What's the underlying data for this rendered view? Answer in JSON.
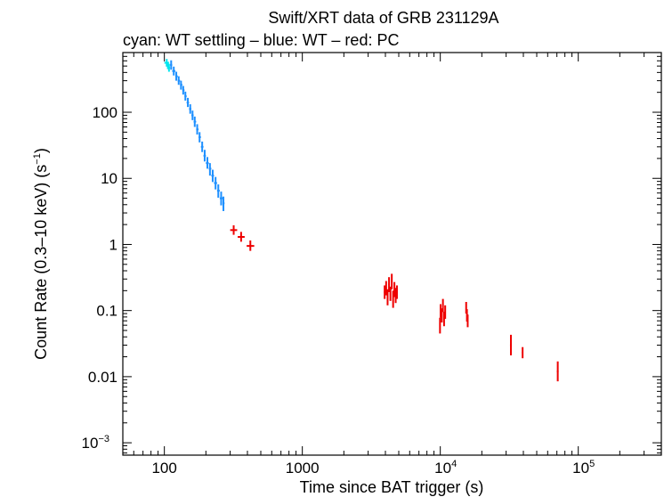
{
  "chart_data": {
    "type": "scatter",
    "title": "Swift/XRT data of GRB 231129A",
    "subtitle": "cyan: WT settling – blue: WT – red: PC",
    "xlabel": "Time since BAT trigger (s)",
    "ylabel_main": "Count Rate (0.3–10 keV) (s",
    "ylabel_sup": "−1",
    "ylabel_close": ")",
    "x_scale": "log",
    "y_scale": "log",
    "xlim": [
      50,
      400000
    ],
    "ylim": [
      0.00065,
      800
    ],
    "x_ticks": [
      {
        "value": 100,
        "label": "100"
      },
      {
        "value": 1000,
        "label": "1000"
      },
      {
        "value": 10000,
        "base": "10",
        "exp": "4"
      },
      {
        "value": 100000,
        "base": "10",
        "exp": "5"
      }
    ],
    "y_ticks": [
      {
        "value": 100,
        "label": "100"
      },
      {
        "value": 10,
        "label": "10"
      },
      {
        "value": 1,
        "label": "1"
      },
      {
        "value": 0.1,
        "label": "0.1"
      },
      {
        "value": 0.01,
        "label": "0.01"
      },
      {
        "value": 0.001,
        "base": "10",
        "exp": "−3"
      }
    ],
    "grid": false,
    "legend": "none",
    "series": [
      {
        "name": "WT settling",
        "color": "#00e5ee",
        "points": [
          [
            104,
            560,
            100,
            108,
            490,
            640
          ],
          [
            106,
            510,
            104,
            108,
            450,
            580
          ],
          [
            108,
            470,
            106,
            110,
            410,
            540
          ]
        ]
      },
      {
        "name": "WT",
        "color": "#1e90ff",
        "points": [
          [
            112,
            520,
            110,
            114,
            440,
            610
          ],
          [
            117,
            420,
            114,
            120,
            360,
            490
          ],
          [
            122,
            350,
            120,
            125,
            300,
            410
          ],
          [
            127,
            300,
            125,
            130,
            260,
            350
          ],
          [
            132,
            260,
            130,
            135,
            220,
            300
          ],
          [
            137,
            215,
            135,
            140,
            185,
            250
          ],
          [
            142,
            175,
            140,
            145,
            150,
            205
          ],
          [
            148,
            140,
            145,
            151,
            120,
            165
          ],
          [
            154,
            112,
            151,
            157,
            95,
            132
          ],
          [
            160,
            90,
            157,
            163,
            76,
            106
          ],
          [
            166,
            72,
            163,
            170,
            60,
            86
          ],
          [
            173,
            55,
            170,
            177,
            46,
            66
          ],
          [
            180,
            42,
            177,
            184,
            35,
            50
          ],
          [
            188,
            30,
            184,
            192,
            25,
            36
          ],
          [
            196,
            22,
            192,
            200,
            18,
            27
          ],
          [
            205,
            17,
            200,
            210,
            14,
            21
          ],
          [
            214,
            14,
            210,
            219,
            11,
            17
          ],
          [
            224,
            11,
            219,
            229,
            8.8,
            13.5
          ],
          [
            235,
            8.5,
            229,
            241,
            6.8,
            10.5
          ],
          [
            246,
            6.5,
            241,
            252,
            5.1,
            8.1
          ],
          [
            258,
            5.0,
            252,
            264,
            3.9,
            6.3
          ],
          [
            268,
            4.2,
            264,
            273,
            3.2,
            5.3
          ]
        ]
      },
      {
        "name": "PC",
        "color": "#ee0000",
        "points": [
          [
            318,
            1.65,
            300,
            337,
            1.4,
            1.95
          ],
          [
            360,
            1.3,
            340,
            382,
            1.1,
            1.55
          ],
          [
            420,
            0.95,
            395,
            448,
            0.8,
            1.15
          ],
          [
            3950,
            0.19,
            3900,
            4000,
            0.15,
            0.24
          ],
          [
            4050,
            0.22,
            4000,
            4100,
            0.17,
            0.28
          ],
          [
            4150,
            0.16,
            4100,
            4200,
            0.12,
            0.21
          ],
          [
            4250,
            0.25,
            4200,
            4300,
            0.19,
            0.32
          ],
          [
            4350,
            0.18,
            4300,
            4400,
            0.14,
            0.23
          ],
          [
            4450,
            0.28,
            4400,
            4500,
            0.21,
            0.36
          ],
          [
            4550,
            0.15,
            4500,
            4600,
            0.11,
            0.2
          ],
          [
            4650,
            0.21,
            4600,
            4700,
            0.16,
            0.27
          ],
          [
            4750,
            0.17,
            4700,
            4800,
            0.13,
            0.22
          ],
          [
            4850,
            0.19,
            4800,
            4900,
            0.15,
            0.24
          ],
          [
            9950,
            0.06,
            9900,
            10000,
            0.045,
            0.078
          ],
          [
            10050,
            0.1,
            10000,
            10100,
            0.078,
            0.125
          ],
          [
            10250,
            0.085,
            10200,
            10300,
            0.066,
            0.108
          ],
          [
            10450,
            0.12,
            10400,
            10500,
            0.095,
            0.15
          ],
          [
            10650,
            0.075,
            10600,
            10700,
            0.058,
            0.096
          ],
          [
            10850,
            0.095,
            10800,
            10900,
            0.075,
            0.12
          ],
          [
            15400,
            0.11,
            15300,
            15500,
            0.09,
            0.135
          ],
          [
            15600,
            0.085,
            15500,
            15700,
            0.068,
            0.105
          ],
          [
            15800,
            0.07,
            15700,
            15900,
            0.056,
            0.087
          ],
          [
            32500,
            0.03,
            32000,
            33000,
            0.021,
            0.043
          ],
          [
            39500,
            0.023,
            39000,
            40000,
            0.019,
            0.028
          ],
          [
            71000,
            0.012,
            70000,
            72000,
            0.0085,
            0.017
          ]
        ]
      }
    ]
  }
}
